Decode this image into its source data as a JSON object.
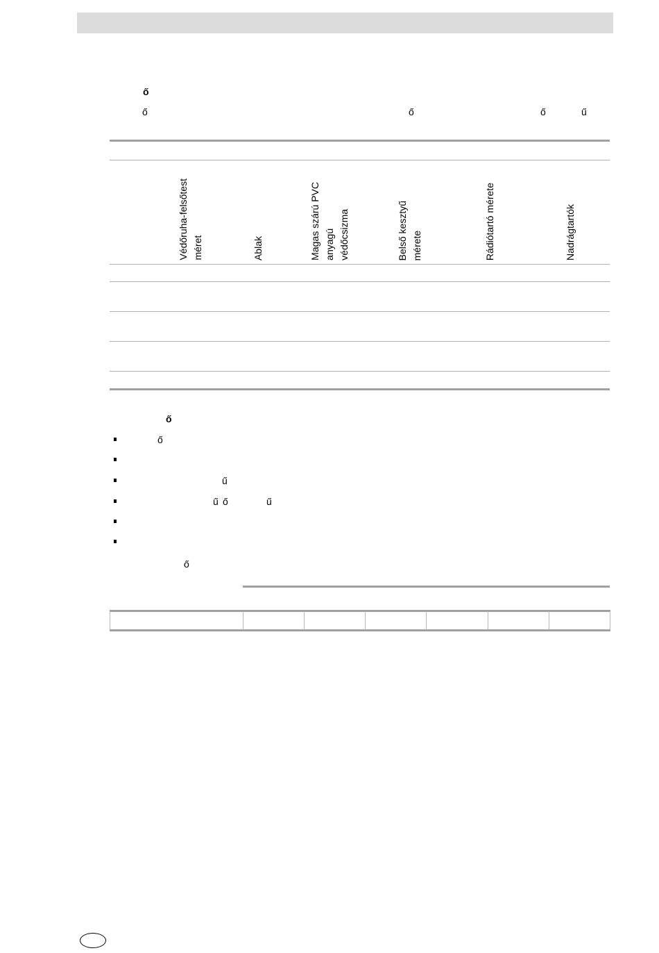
{
  "visible_glyphs": {
    "heading1": "ő",
    "intro": [
      "ő",
      "ő",
      "ő",
      "ű"
    ],
    "heading2": "ő",
    "bullets": [
      [
        "ő"
      ],
      [],
      [
        "ű"
      ],
      [
        "ű",
        "ő",
        "ű"
      ],
      [],
      []
    ],
    "note": "ő"
  },
  "table": {
    "headers": [
      "Védőruha-felsőtest\nméret",
      "Ablak",
      "Magas szárú PVC\nanyagú\nvédőcsizma",
      "Belső kesztyű\nmérete",
      "Rádiótartó mérete",
      "Nadrágtartók"
    ]
  }
}
